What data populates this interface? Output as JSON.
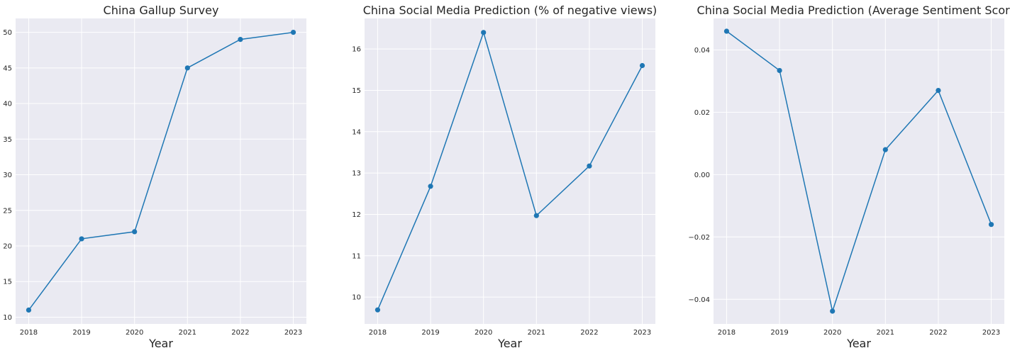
{
  "chart_data": [
    {
      "type": "line",
      "title": "China Gallup Survey",
      "xlabel": "Year",
      "ylabel": "",
      "x": [
        "2018",
        "2019",
        "2020",
        "2021",
        "2022",
        "2023"
      ],
      "values": [
        11,
        21,
        22,
        45,
        49,
        50
      ],
      "yticks": [
        "10",
        "15",
        "20",
        "25",
        "30",
        "35",
        "40",
        "45",
        "50"
      ],
      "ylim": [
        9.05,
        51.95
      ],
      "grid": true,
      "marker": "circle",
      "color": "#1f77b4"
    },
    {
      "type": "line",
      "title": "China Social Media Prediction (% of negative views)",
      "xlabel": "Year",
      "ylabel": "",
      "x": [
        "2018",
        "2019",
        "2020",
        "2021",
        "2022",
        "2023"
      ],
      "values": [
        9.69,
        12.68,
        16.4,
        11.97,
        13.17,
        15.6
      ],
      "yticks": [
        "10",
        "11",
        "12",
        "13",
        "14",
        "15",
        "16"
      ],
      "ylim": [
        9.35,
        16.74
      ],
      "grid": true,
      "marker": "circle",
      "color": "#1f77b4"
    },
    {
      "type": "line",
      "title": "China Social Media Prediction (Average Sentiment Score)",
      "xlabel": "Year",
      "ylabel": "",
      "x": [
        "2018",
        "2019",
        "2020",
        "2021",
        "2022",
        "2023"
      ],
      "values": [
        0.046,
        0.0334,
        -0.0438,
        0.008,
        0.027,
        -0.016
      ],
      "yticks": [
        "−0.04",
        "−0.02",
        "0.00",
        "0.02",
        "0.04"
      ],
      "ylim": [
        -0.0479,
        0.0501
      ],
      "grid": true,
      "marker": "circle",
      "color": "#1f77b4"
    }
  ]
}
